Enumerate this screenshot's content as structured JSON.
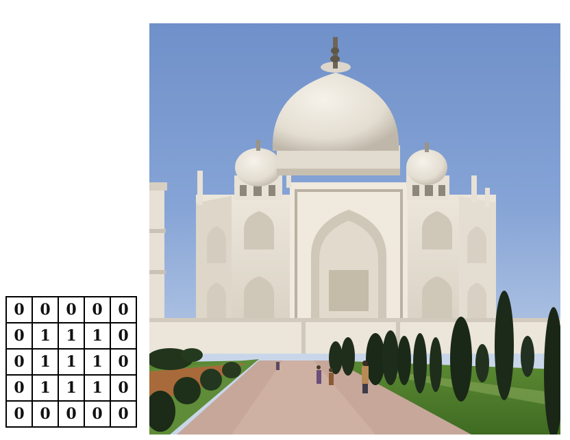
{
  "matrix": {
    "rows": [
      [
        "0",
        "0",
        "0",
        "0",
        "0"
      ],
      [
        "0",
        "1",
        "1",
        "1",
        "0"
      ],
      [
        "0",
        "1",
        "1",
        "1",
        "0"
      ],
      [
        "0",
        "1",
        "1",
        "1",
        "0"
      ],
      [
        "0",
        "0",
        "0",
        "0",
        "0"
      ]
    ]
  },
  "photo": {
    "subject": "taj-mahal",
    "colors": {
      "sky": "#86a4d6",
      "marble": "#e9e3d8",
      "shadow": "#b9b3a6",
      "grass": "#4f7a2a",
      "path": "#c9a79a",
      "trees": "#1e2c1b"
    }
  }
}
